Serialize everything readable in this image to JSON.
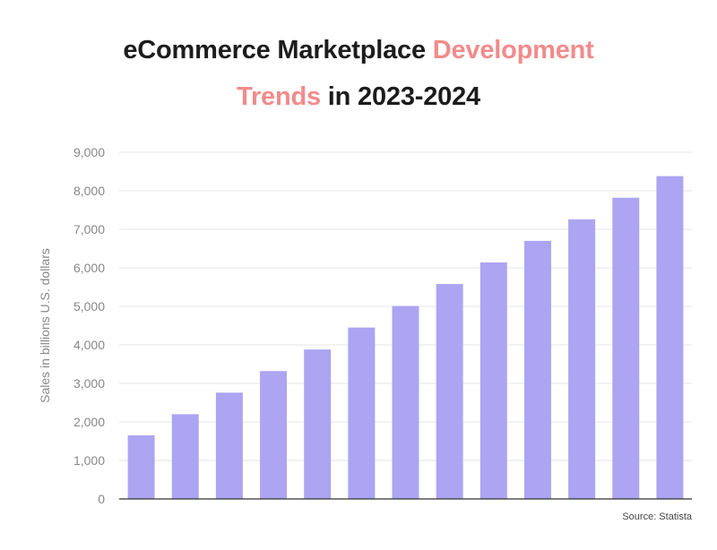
{
  "title": {
    "line1_plain": "eCommerce Marketplace ",
    "line1_highlight": "Development",
    "line2_highlight": "Trends",
    "line2_plain": " in 2023-2024"
  },
  "source": "Source: Statista",
  "colors": {
    "bar": "#ada4f2",
    "title_highlight": "#f28b8b",
    "title_text": "#1c1c1c",
    "grid": "#e6e6e6",
    "axis": "#333333",
    "tick_text": "#888888"
  },
  "chart_data": {
    "type": "bar",
    "title": "eCommerce Marketplace Development Trends in 2023-2024",
    "xlabel": "",
    "ylabel": "Sales in billions U.S. dollars",
    "ylim": [
      0,
      9000
    ],
    "yticks": [
      0,
      1000,
      2000,
      3000,
      4000,
      5000,
      6000,
      7000,
      8000,
      9000
    ],
    "ytick_labels": [
      "0",
      "1,000",
      "2,000",
      "3,000",
      "4,000",
      "5,000",
      "6,000",
      "7,000",
      "8,000",
      "9,000"
    ],
    "grid": true,
    "values": [
      1650,
      2200,
      2760,
      3320,
      3880,
      4450,
      5010,
      5580,
      6140,
      6700,
      7260,
      7820,
      8380
    ]
  }
}
